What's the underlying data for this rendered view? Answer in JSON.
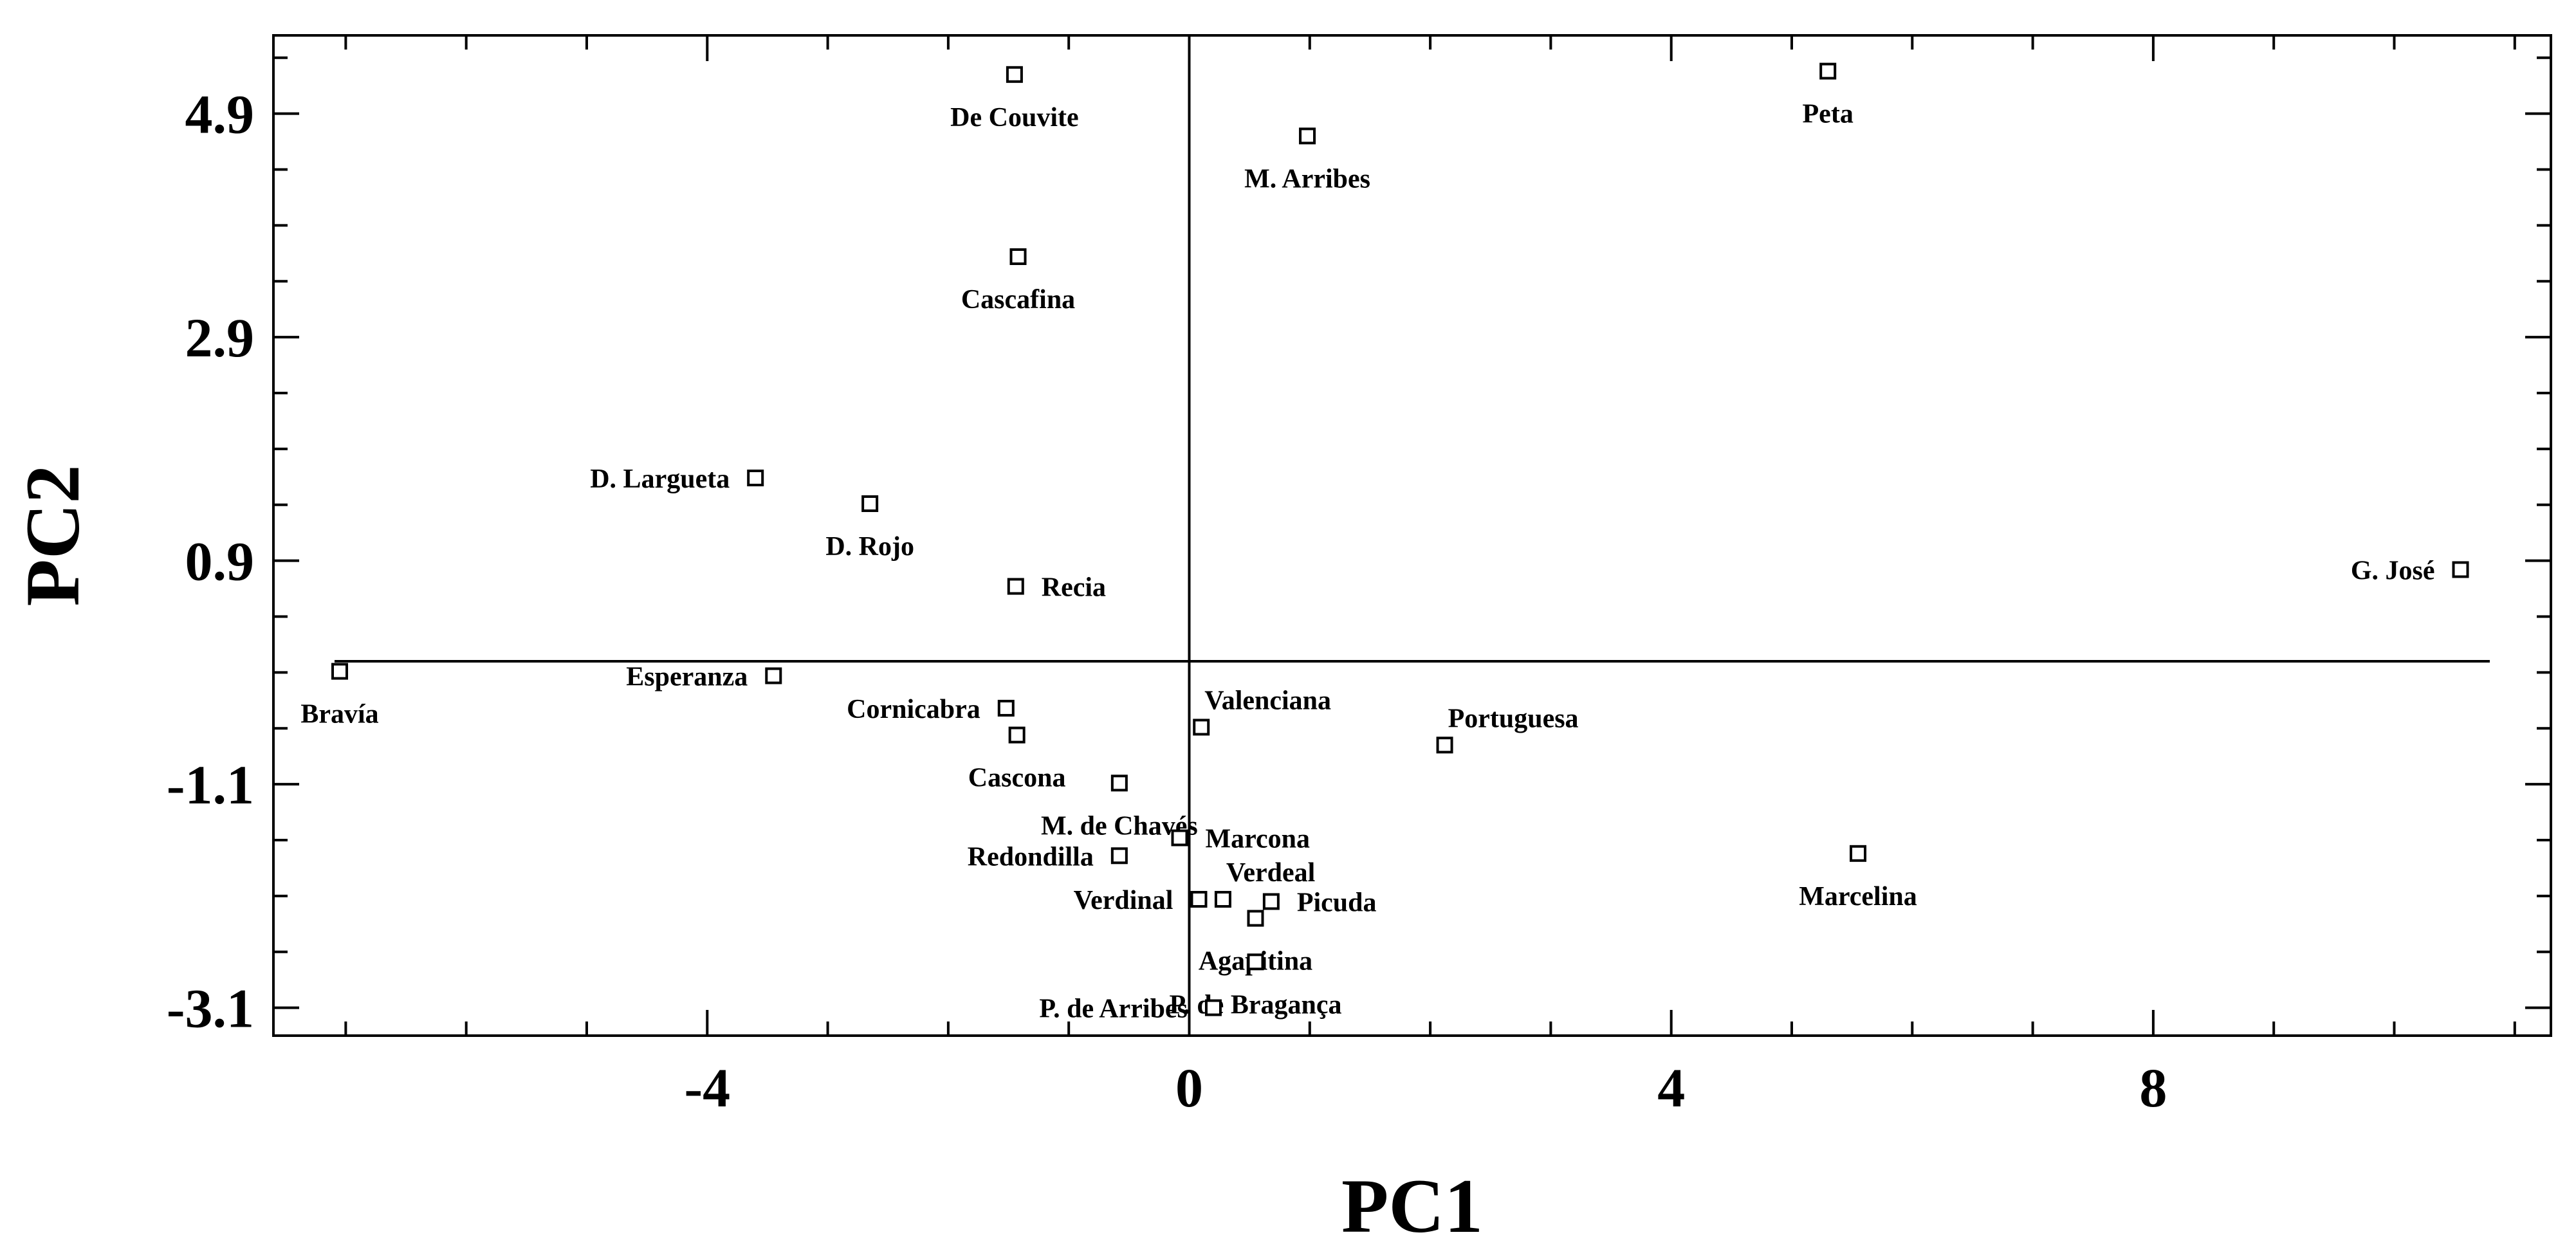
{
  "chart_data": {
    "type": "scatter",
    "title": "",
    "xlabel": "PC1",
    "ylabel": "PC2",
    "xlim": [
      -7.6,
      11.3
    ],
    "ylim": [
      -3.35,
      5.6
    ],
    "xticks": [
      -4,
      0,
      4,
      8
    ],
    "xtick_labels": [
      "-4",
      "0",
      "4",
      "8"
    ],
    "yticks": [
      4.9,
      2.9,
      0.9,
      -1.1,
      -3.1
    ],
    "ytick_labels": [
      "4.9",
      "2.9",
      "0.9",
      "-1.1",
      "-3.1"
    ],
    "marker": "open-square",
    "grid": false,
    "legend": "none",
    "reference_lines": {
      "x": 0,
      "y": 0
    },
    "points": [
      {
        "label": "De Couvite",
        "x": -1.45,
        "y": 5.25,
        "label_pos": "below"
      },
      {
        "label": "Peta",
        "x": 5.3,
        "y": 5.28,
        "label_pos": "below"
      },
      {
        "label": "M. Arribes",
        "x": 0.98,
        "y": 4.7,
        "label_pos": "below"
      },
      {
        "label": "Cascafina",
        "x": -1.42,
        "y": 3.62,
        "label_pos": "below"
      },
      {
        "label": "D. Largueta",
        "x": -3.6,
        "y": 1.64,
        "label_pos": "left"
      },
      {
        "label": "D. Rojo",
        "x": -2.65,
        "y": 1.41,
        "label_pos": "below"
      },
      {
        "label": "Recia",
        "x": -1.44,
        "y": 0.67,
        "label_pos": "right"
      },
      {
        "label": "G. José",
        "x": 10.55,
        "y": 0.82,
        "label_pos": "left"
      },
      {
        "label": "Bravía",
        "x": -7.05,
        "y": -0.09,
        "label_pos": "below"
      },
      {
        "label": "Esperanza",
        "x": -3.45,
        "y": -0.13,
        "label_pos": "left"
      },
      {
        "label": "Cornicabra",
        "x": -1.52,
        "y": -0.42,
        "label_pos": "left"
      },
      {
        "label": "Cascona",
        "x": -1.43,
        "y": -0.66,
        "label_pos": "below"
      },
      {
        "label": "Valenciana",
        "x": 0.1,
        "y": -0.59,
        "label_pos": "above"
      },
      {
        "label": "Portuguesa",
        "x": 2.12,
        "y": -0.75,
        "label_pos": "above"
      },
      {
        "label": "M. de Chavés",
        "x": -0.58,
        "y": -1.09,
        "label_pos": "below"
      },
      {
        "label": "Marcona",
        "x": -0.08,
        "y": -1.58,
        "label_pos": "right"
      },
      {
        "label": "Redondilla",
        "x": -0.58,
        "y": -1.74,
        "label_pos": "left"
      },
      {
        "label": "Marcelina",
        "x": 5.55,
        "y": -1.72,
        "label_pos": "below"
      },
      {
        "label": "Verdeal",
        "x": 0.28,
        "y": -2.13,
        "label_pos": "above"
      },
      {
        "label": "Verdinal",
        "x": 0.08,
        "y": -2.13,
        "label_pos": "left"
      },
      {
        "label": "Picuda",
        "x": 0.68,
        "y": -2.15,
        "label_pos": "right"
      },
      {
        "label": "Agapitina",
        "x": 0.55,
        "y": -2.3,
        "label_pos": "below"
      },
      {
        "label": "P. de Bragança",
        "x": 0.55,
        "y": -2.69,
        "label_pos": "below"
      },
      {
        "label": "P. de Arribes",
        "x": 0.2,
        "y": -3.1,
        "label_pos": "left"
      }
    ]
  }
}
